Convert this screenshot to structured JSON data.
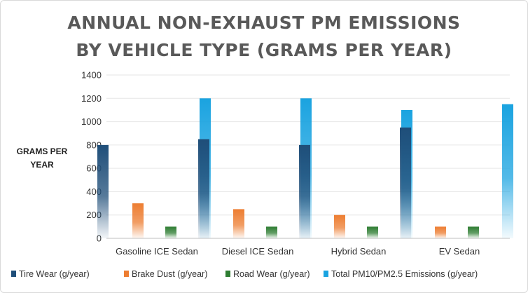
{
  "chart_data": {
    "type": "bar",
    "title_line1": "ANNUAL NON-EXHAUST PM EMISSIONS",
    "title_line2": "BY VEHICLE TYPE (GRAMS PER YEAR)",
    "ylabel_line1": "GRAMS PER",
    "ylabel_line2": "YEAR",
    "xlabel": "",
    "ylim": [
      0,
      1400
    ],
    "yticks": [
      "0",
      "200",
      "400",
      "600",
      "800",
      "1000",
      "1200",
      "1400"
    ],
    "grid": true,
    "legend_position": "bottom",
    "categories": [
      "Gasoline ICE Sedan",
      "Diesel ICE Sedan",
      "Hybrid Sedan",
      "EV Sedan"
    ],
    "series": [
      {
        "name": "Tire Wear (g/year)",
        "values": [
          800,
          850,
          800,
          950
        ],
        "color": "#1f4e79"
      },
      {
        "name": "Brake Dust (g/year)",
        "values": [
          300,
          250,
          200,
          100
        ],
        "color": "#ed7d31"
      },
      {
        "name": "Road Wear (g/year)",
        "values": [
          100,
          100,
          100,
          100
        ],
        "color": "#2e7d32"
      },
      {
        "name": "Total PM10/PM2.5 Emissions (g/year)",
        "values": [
          1200,
          1200,
          1100,
          1150
        ],
        "color": "#1aa3e0"
      }
    ]
  }
}
